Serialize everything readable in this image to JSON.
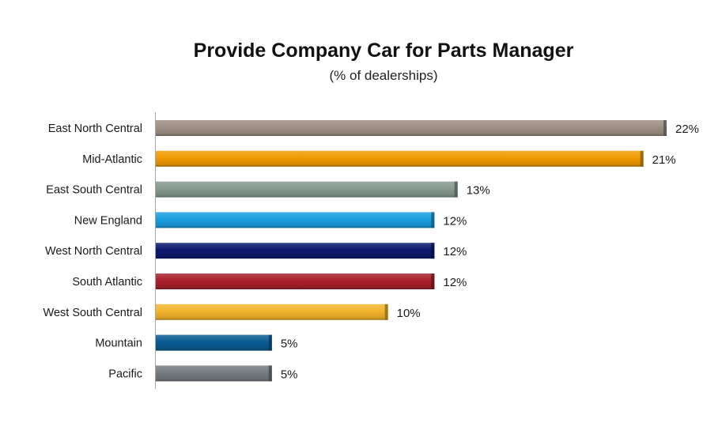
{
  "chart_data": {
    "type": "bar",
    "orientation": "horizontal",
    "title": "Provide Company Car for Parts Manager",
    "subtitle": "(% of dealerships)",
    "xlabel": "",
    "ylabel": "",
    "xlim": [
      0,
      22
    ],
    "grid": false,
    "legend": "none",
    "value_suffix": "%",
    "categories": [
      "East North Central",
      "Mid-Atlantic",
      "East South Central",
      "New England",
      "West North Central",
      "South Atlantic",
      "West South Central",
      "Mountain",
      "Pacific"
    ],
    "values": [
      22,
      21,
      13,
      12,
      12,
      12,
      10,
      5,
      5
    ],
    "data_labels": [
      "22%",
      "21%",
      "13%",
      "12%",
      "12%",
      "12%",
      "10%",
      "5%",
      "5%"
    ],
    "colors": [
      "#9d8f83",
      "#f09a00",
      "#869a8f",
      "#1a9de0",
      "#0c1a6e",
      "#a8202b",
      "#f3b42b",
      "#0a5c92",
      "#767c82"
    ]
  }
}
